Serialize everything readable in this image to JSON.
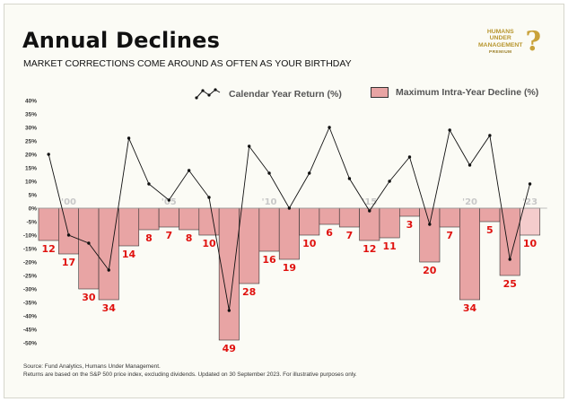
{
  "title": "Annual Declines",
  "subtitle": "MARKET CORRECTIONS COME AROUND AS OFTEN AS YOUR BIRTHDAY",
  "logo": {
    "lines": [
      "HUMANS",
      "UNDER",
      "MANAGEMENT"
    ],
    "tag": "PREMIUM",
    "mark": "?"
  },
  "legend": {
    "line_label": "Calendar Year Return (%)",
    "bar_label": "Maximum Intra-Year Decline (%)"
  },
  "footer": {
    "source": "Source: Fund Analytics, Humans Under Management.",
    "note": "Returns are based on the S&P 500 price index, excluding dividends. Updated on 30 September 2023. For illustrative purposes only."
  },
  "colors": {
    "bar": "#e8a4a4",
    "bar_latest": "#f4cccc",
    "bar_stroke": "#333333",
    "line": "#111111",
    "label": "#e0120f",
    "gridline": "#aaaaaa"
  },
  "chart_data": {
    "type": "bar",
    "years": [
      1999,
      2000,
      2001,
      2002,
      2003,
      2004,
      2005,
      2006,
      2007,
      2008,
      2009,
      2010,
      2011,
      2012,
      2013,
      2014,
      2015,
      2016,
      2017,
      2018,
      2019,
      2020,
      2021,
      2022,
      2023
    ],
    "x_tick_labels": [
      {
        "year": 2000,
        "label": "'00"
      },
      {
        "year": 2005,
        "label": "'05"
      },
      {
        "year": 2010,
        "label": "'10"
      },
      {
        "year": 2015,
        "label": "'15"
      },
      {
        "year": 2020,
        "label": "'20"
      },
      {
        "year": 2023,
        "label": "'23"
      }
    ],
    "series": [
      {
        "name": "Maximum Intra-Year Decline (%)",
        "type": "bar",
        "values": [
          -12,
          -17,
          -30,
          -34,
          -14,
          -8,
          -7,
          -8,
          -10,
          -49,
          -28,
          -16,
          -19,
          -10,
          -6,
          -7,
          -12,
          -11,
          -3,
          -20,
          -7,
          -34,
          -5,
          -25,
          -10
        ],
        "labels": [
          "12",
          "17",
          "30",
          "34",
          "14",
          "8",
          "7",
          "8",
          "10",
          "49",
          "28",
          "16",
          "19",
          "10",
          "6",
          "7",
          "12",
          "11",
          "3",
          "20",
          "7",
          "34",
          "5",
          "25",
          "10"
        ]
      },
      {
        "name": "Calendar Year Return (%)",
        "type": "line",
        "values": [
          20,
          -10,
          -13,
          -23,
          26,
          9,
          3,
          14,
          4,
          -38,
          23,
          13,
          0,
          13,
          30,
          11,
          -1,
          10,
          19,
          -6,
          29,
          16,
          27,
          -19,
          9
        ]
      }
    ],
    "y_ticks": [
      "40%",
      "35%",
      "30%",
      "25%",
      "20%",
      "15%",
      "10%",
      "5%",
      "0%",
      "-5%",
      "-10%",
      "-15%",
      "-20%",
      "-25%",
      "-30%",
      "-35%",
      "-40%",
      "-45%",
      "-50%"
    ],
    "y_tick_values": [
      40,
      35,
      30,
      25,
      20,
      15,
      10,
      5,
      0,
      -5,
      -10,
      -15,
      -20,
      -25,
      -30,
      -35,
      -40,
      -45,
      -50
    ],
    "ylim": [
      -50,
      40
    ],
    "grid": false
  }
}
